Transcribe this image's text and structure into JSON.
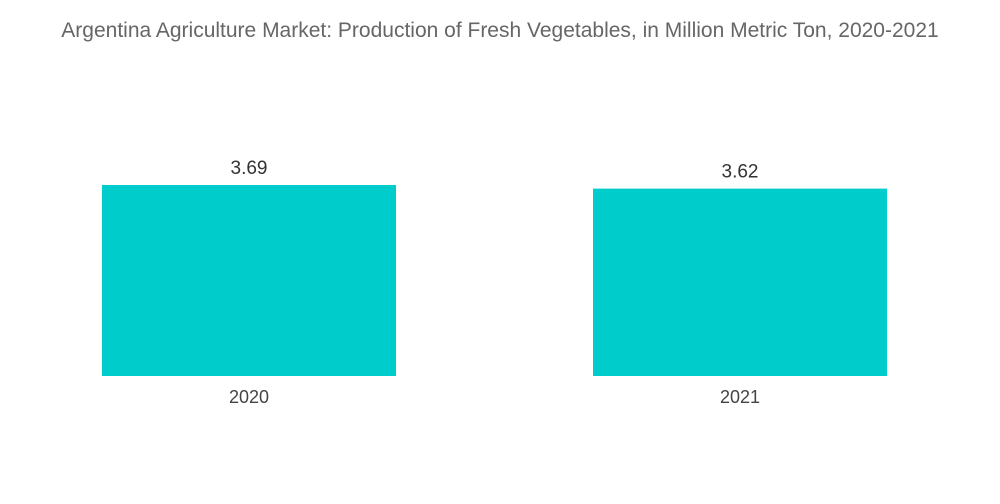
{
  "chart_data": {
    "type": "bar",
    "title": "Argentina Agriculture Market: Production of Fresh Vegetables, in Million Metric Ton, 2020-2021",
    "categories": [
      "2020",
      "2021"
    ],
    "values": [
      3.69,
      3.62
    ],
    "value_labels": [
      "3.69",
      "3.62"
    ],
    "xlabel": "",
    "ylabel": "",
    "ylim": [
      0,
      3.69
    ],
    "grid": false,
    "legend": "none",
    "bar_color": "#00CCCC"
  }
}
